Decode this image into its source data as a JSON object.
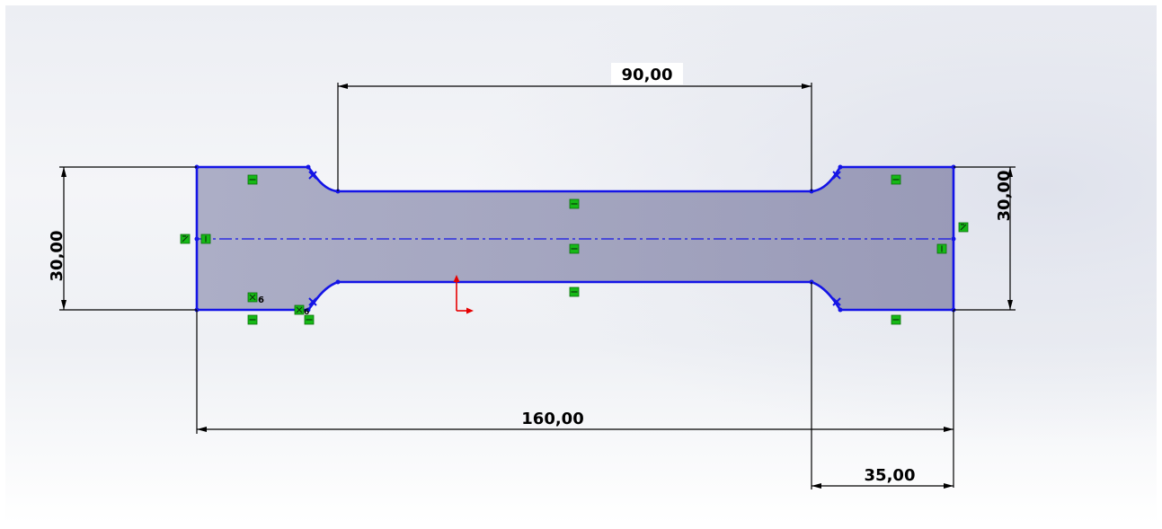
{
  "dimensions": {
    "top_length": "90,00",
    "left_height": "30,00",
    "right_height": "30,00",
    "overall_length": "160,00",
    "grip_length": "35,00"
  },
  "relation_suffix": "6",
  "colors": {
    "sketch_line": "#1414e6",
    "relation_icon": "#16b916",
    "origin": "#e60000",
    "fill_face": "#9a9cb8"
  },
  "icons": [
    "horizontal-relation-icon",
    "vertical-relation-icon",
    "coincident-relation-icon",
    "merge-relation-icon",
    "tangent-relation-icon",
    "origin-icon"
  ]
}
